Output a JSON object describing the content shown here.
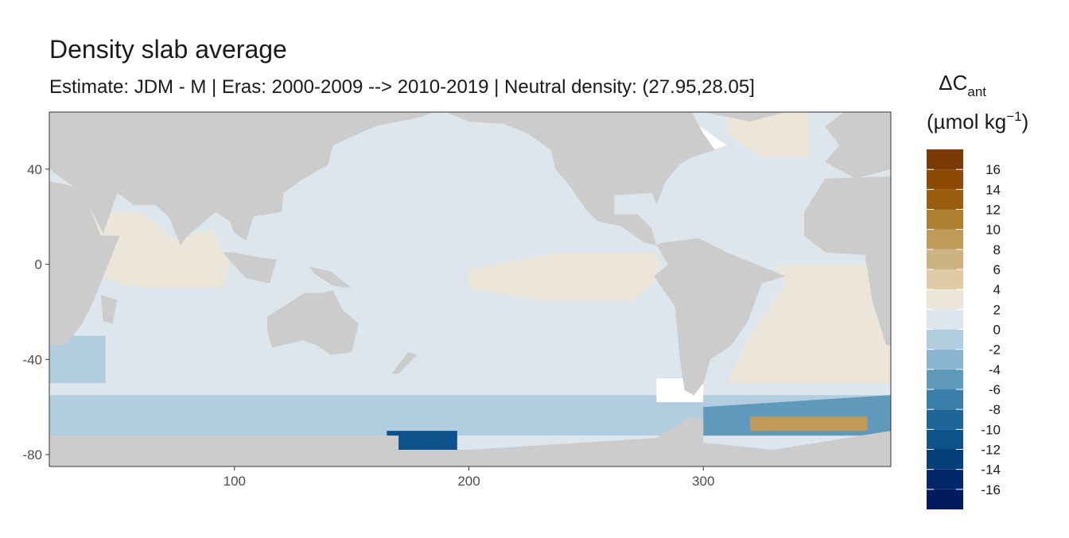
{
  "chart_data": {
    "type": "map",
    "title": "Density slab average",
    "subtitle": "Estimate: JDM - M | Eras: 2000-2009 --> 2010-2019 | Neutral density: (27.95,28.05]",
    "legend_title": [
      "ΔC",
      "ant",
      "(µmol kg",
      "−1",
      ")"
    ],
    "xlim": [
      21,
      380
    ],
    "xticks": [
      100,
      200,
      300
    ],
    "ylim": [
      -85,
      64
    ],
    "yticks": [
      40,
      0,
      -40,
      -80
    ],
    "land_color": "#cccccc",
    "legend": {
      "breaks": [
        -18,
        -16,
        -14,
        -12,
        -10,
        -8,
        -6,
        -4,
        -2,
        0,
        2,
        4,
        6,
        8,
        10,
        12,
        14,
        16,
        18
      ],
      "colors": [
        "#001b5e",
        "#04276b",
        "#063e7c",
        "#0d528a",
        "#1f6698",
        "#3a7eaa",
        "#5f99bb",
        "#8bb5cf",
        "#b2cddf",
        "#dce6ec",
        "#ece6da",
        "#e0cba6",
        "#cdb283",
        "#bf9a58",
        "#ad7f30",
        "#9a5e10",
        "#8c4a05",
        "#7a3a08",
        "#67200a"
      ],
      "ticks": [
        -16,
        -14,
        -12,
        -10,
        -8,
        -6,
        -4,
        -2,
        0,
        2,
        4,
        6,
        8,
        10,
        12,
        14,
        16
      ]
    }
  }
}
